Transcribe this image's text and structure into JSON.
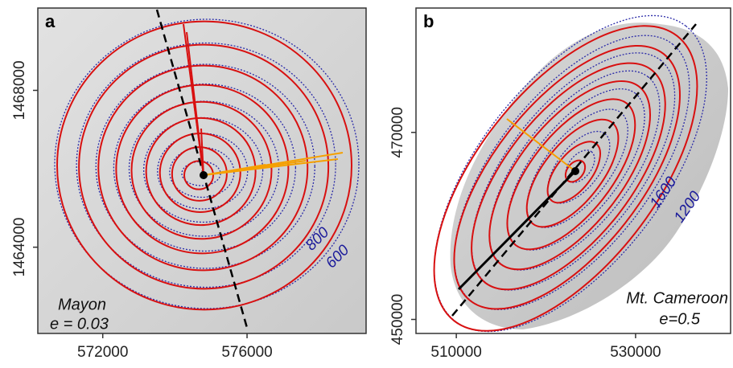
{
  "chart_data": [
    {
      "type": "contour",
      "panel": "a",
      "xlim": [
        570200,
        579300
      ],
      "ylim": [
        1461800,
        1470100
      ],
      "xticks": [
        572000,
        576000
      ],
      "yticks": [
        1464000,
        1468000
      ],
      "annotations": [
        "Mayon",
        "e = 0.03"
      ],
      "contour_labels": [
        800,
        600
      ]
    },
    {
      "type": "contour",
      "panel": "b",
      "xlim": [
        505500,
        540600
      ],
      "ylim": [
        448500,
        483300
      ],
      "xticks": [
        510000,
        530000
      ],
      "yticks": [
        450000,
        470000
      ],
      "annotations": [
        "Mt. Cameroon",
        "e=0.5"
      ],
      "contour_labels": [
        1600,
        1200
      ]
    }
  ]
}
